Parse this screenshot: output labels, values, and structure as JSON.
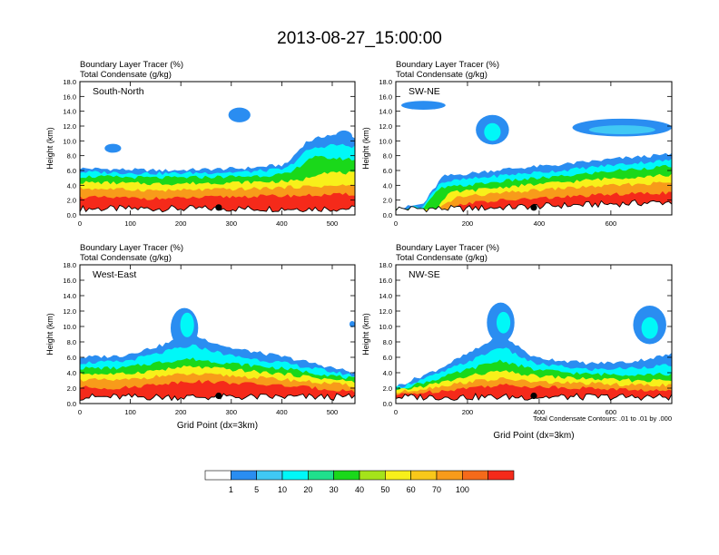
{
  "title": "2013-08-27_15:00:00",
  "panel_labels": {
    "tracer": "Boundary Layer Tracer   (%)",
    "condensate": "Total Condensate   (g/kg)"
  },
  "ylabel": "Height (km)",
  "xlabel": "Grid Point (dx=3km)",
  "contour_note": "Total Condensate Contours: .01 to .01 by .000",
  "colorbar": {
    "colors": [
      "#ffffff",
      "#2a8df1",
      "#40c8f4",
      "#00f8f8",
      "#1fe08c",
      "#1ad81a",
      "#a5e31a",
      "#f8f01a",
      "#f8c81a",
      "#f89b1a",
      "#f56a1a",
      "#f52a1a"
    ],
    "labels": [
      "1",
      "5",
      "10",
      "20",
      "30",
      "40",
      "50",
      "60",
      "70",
      "100"
    ]
  },
  "chart_data": [
    {
      "type": "heatmap",
      "name": "South-North",
      "xlim": [
        0,
        545
      ],
      "ylim": [
        0,
        18
      ],
      "x_ticks": [
        "0",
        "100",
        "200",
        "300",
        "400",
        "500"
      ],
      "y_ticks": [
        "0.0",
        "2.0",
        "4.0",
        "6.0",
        "8.0",
        "10.0",
        "12.0",
        "14.0",
        "16.0",
        "18.0"
      ],
      "marker_x": 275,
      "marker_y": 1.0
    },
    {
      "type": "heatmap",
      "name": "SW-NE",
      "xlim": [
        0,
        770
      ],
      "ylim": [
        0,
        18
      ],
      "x_ticks": [
        "0",
        "200",
        "400",
        "600"
      ],
      "y_ticks": [
        "0.0",
        "2.0",
        "4.0",
        "6.0",
        "8.0",
        "10.0",
        "12.0",
        "14.0",
        "16.0",
        "18.0"
      ],
      "marker_x": 385,
      "marker_y": 1.0
    },
    {
      "type": "heatmap",
      "name": "West-East",
      "xlim": [
        0,
        545
      ],
      "ylim": [
        0,
        18
      ],
      "x_ticks": [
        "0",
        "100",
        "200",
        "300",
        "400",
        "500"
      ],
      "y_ticks": [
        "0.0",
        "2.0",
        "4.0",
        "6.0",
        "8.0",
        "10.0",
        "12.0",
        "14.0",
        "16.0",
        "18.0"
      ],
      "marker_x": 275,
      "marker_y": 1.0
    },
    {
      "type": "heatmap",
      "name": "NW-SE",
      "xlim": [
        0,
        770
      ],
      "ylim": [
        0,
        18
      ],
      "x_ticks": [
        "0",
        "200",
        "400",
        "600"
      ],
      "y_ticks": [
        "0.0",
        "2.0",
        "4.0",
        "6.0",
        "8.0",
        "10.0",
        "12.0",
        "14.0",
        "16.0",
        "18.0"
      ],
      "marker_x": 385,
      "marker_y": 1.0
    }
  ]
}
